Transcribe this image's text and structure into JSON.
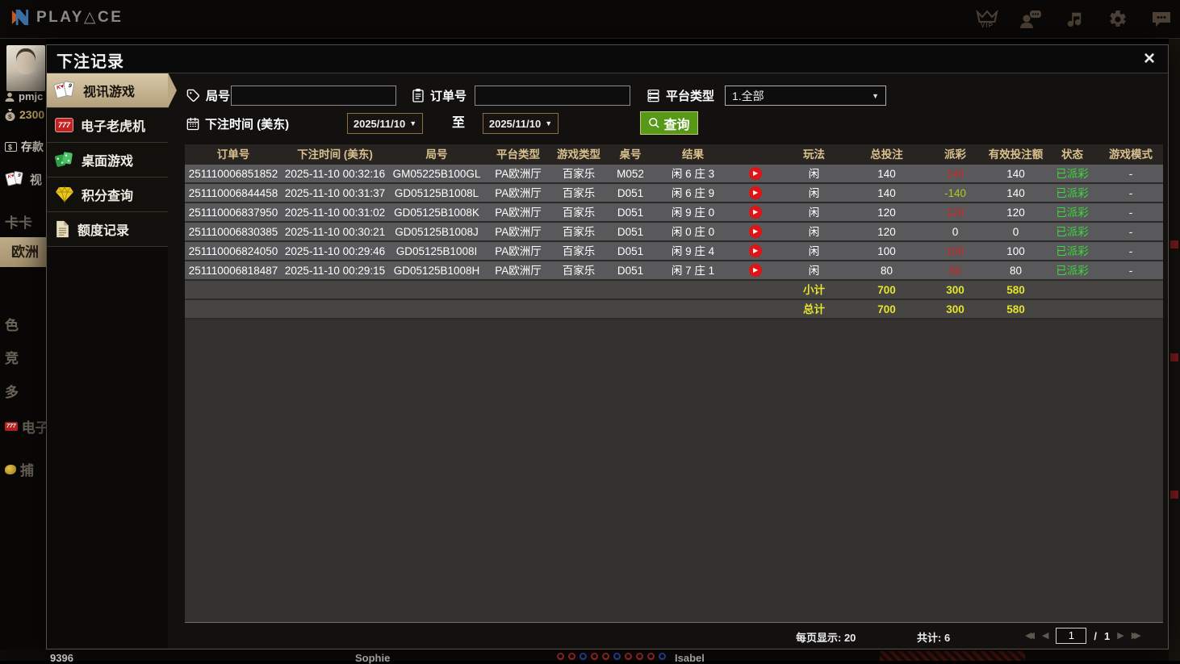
{
  "topbar": {
    "brand": "PLAY△CE",
    "vip_label": "VIP"
  },
  "background": {
    "username": "pmjc",
    "balance": "2300",
    "deposit_label": "存款",
    "menu_video": "视",
    "menu_items": [
      "卡卡",
      "欧洲",
      "色",
      "竞",
      "多",
      "电子",
      "捕"
    ],
    "bottom_number": "9396",
    "bottom_dealer1": "Sophie",
    "bottom_dealer2": "Isabel"
  },
  "icons": {
    "dropdown": "▼",
    "play": "▶",
    "close": "×",
    "tri_left": "◀",
    "tri_right": "▶",
    "card_face": "K♥",
    "card_num": "9",
    "slot_text": "777",
    "mini_slot_text": "777"
  },
  "modal": {
    "title": "下注记录",
    "sidebar": {
      "items": [
        {
          "label": "视讯游戏",
          "icon": "playing-cards-icon",
          "selected": true
        },
        {
          "label": "电子老虎机",
          "icon": "slot-machine-icon",
          "selected": false
        },
        {
          "label": "桌面游戏",
          "icon": "table-games-icon",
          "selected": false
        },
        {
          "label": "积分查询",
          "icon": "diamond-icon",
          "selected": false
        },
        {
          "label": "额度记录",
          "icon": "document-icon",
          "selected": false
        }
      ]
    },
    "filters": {
      "round_label": "局号",
      "round_value": "",
      "order_label": "订单号",
      "order_value": "",
      "platform_label": "平台类型",
      "platform_value": "1.全部",
      "time_label": "下注时间 (美东)",
      "date_from": "2025/11/10",
      "to_label": "至",
      "date_to": "2025/11/10",
      "search_label": "查询"
    },
    "table": {
      "headers": [
        "订单号",
        "下注时间 (美东)",
        "局号",
        "平台类型",
        "游戏类型",
        "桌号",
        "结果",
        "",
        "玩法",
        "总投注",
        "派彩",
        "有效投注额",
        "状态",
        "游戏模式"
      ],
      "rows": [
        {
          "order_id": "251110006851852",
          "bet_time": "2025-11-10 00:32:16",
          "round_id": "GM05225B100GL",
          "platform": "PA欧洲厅",
          "game_type": "百家乐",
          "table_no": "M052",
          "result": "闲 6 庄 3",
          "play": "闲",
          "total_bet": "140",
          "payout": "140",
          "payout_color": "red",
          "valid_bet": "140",
          "status": "已派彩",
          "mode": "-"
        },
        {
          "order_id": "251110006844458",
          "bet_time": "2025-11-10 00:31:37",
          "round_id": "GD05125B1008L",
          "platform": "PA欧洲厅",
          "game_type": "百家乐",
          "table_no": "D051",
          "result": "闲 6 庄 9",
          "play": "闲",
          "total_bet": "140",
          "payout": "-140",
          "payout_color": "green",
          "valid_bet": "140",
          "status": "已派彩",
          "mode": "-"
        },
        {
          "order_id": "251110006837950",
          "bet_time": "2025-11-10 00:31:02",
          "round_id": "GD05125B1008K",
          "platform": "PA欧洲厅",
          "game_type": "百家乐",
          "table_no": "D051",
          "result": "闲 9 庄 0",
          "play": "闲",
          "total_bet": "120",
          "payout": "120",
          "payout_color": "red",
          "valid_bet": "120",
          "status": "已派彩",
          "mode": "-"
        },
        {
          "order_id": "251110006830385",
          "bet_time": "2025-11-10 00:30:21",
          "round_id": "GD05125B1008J",
          "platform": "PA欧洲厅",
          "game_type": "百家乐",
          "table_no": "D051",
          "result": "闲 0 庄 0",
          "play": "闲",
          "total_bet": "120",
          "payout": "0",
          "payout_color": "white",
          "valid_bet": "0",
          "status": "已派彩",
          "mode": "-"
        },
        {
          "order_id": "251110006824050",
          "bet_time": "2025-11-10 00:29:46",
          "round_id": "GD05125B1008I",
          "platform": "PA欧洲厅",
          "game_type": "百家乐",
          "table_no": "D051",
          "result": "闲 9 庄 4",
          "play": "闲",
          "total_bet": "100",
          "payout": "100",
          "payout_color": "red",
          "valid_bet": "100",
          "status": "已派彩",
          "mode": "-"
        },
        {
          "order_id": "251110006818487",
          "bet_time": "2025-11-10 00:29:15",
          "round_id": "GD05125B1008H",
          "platform": "PA欧洲厅",
          "game_type": "百家乐",
          "table_no": "D051",
          "result": "闲 7 庄 1",
          "play": "闲",
          "total_bet": "80",
          "payout": "80",
          "payout_color": "red",
          "valid_bet": "80",
          "status": "已派彩",
          "mode": "-"
        }
      ],
      "subtotal": {
        "label": "小计",
        "total_bet": "700",
        "payout": "300",
        "valid_bet": "580"
      },
      "grand_total": {
        "label": "总计",
        "total_bet": "700",
        "payout": "300",
        "valid_bet": "580"
      }
    },
    "footer": {
      "per_page": "每页显示: 20",
      "total_count": "共计: 6",
      "page": "1",
      "separator": "/",
      "total_pages": "1"
    }
  },
  "colors": {
    "accent_tan": "#c2ae8a",
    "button_green": "#579916",
    "win_red": "#cf2626",
    "loss_green": "#a8cc1e",
    "total_yellow": "#e3e42b",
    "status_green": "#3adb3a",
    "header_gold": "#d9c08c"
  }
}
